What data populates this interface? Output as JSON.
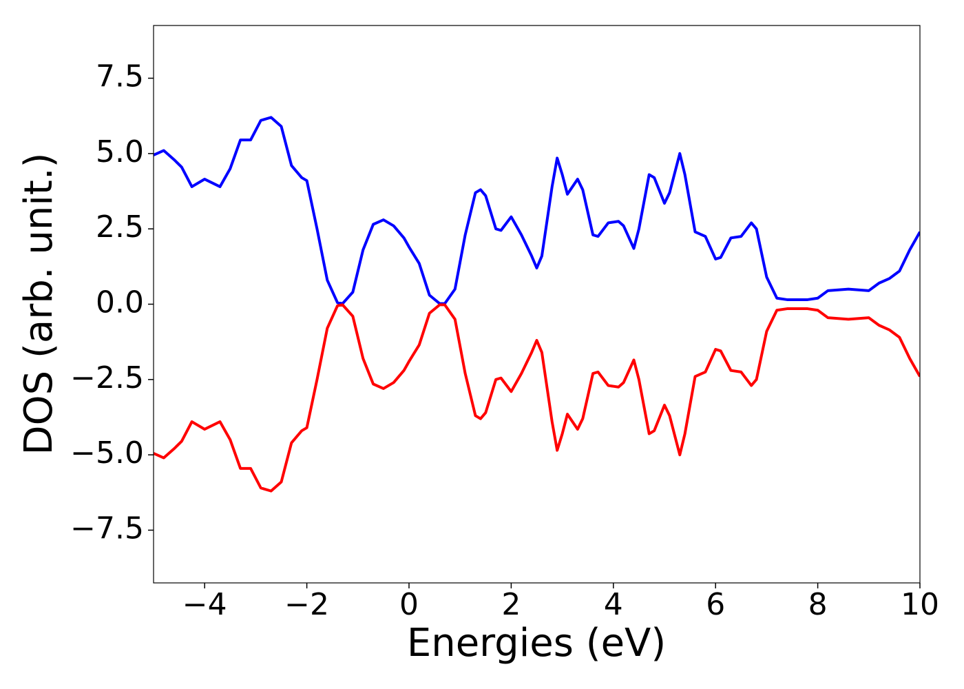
{
  "chart_data": {
    "type": "line",
    "xlabel": "Energies (eV)",
    "ylabel": "DOS (arb. unit.)",
    "x": [
      -5,
      -4.8,
      -4.6,
      -4.45,
      -4.25,
      -4.0,
      -3.7,
      -3.5,
      -3.3,
      -3.1,
      -2.9,
      -2.7,
      -2.5,
      -2.3,
      -2.1,
      -2.0,
      -1.8,
      -1.6,
      -1.4,
      -1.3,
      -1.1,
      -0.9,
      -0.7,
      -0.5,
      -0.3,
      -0.1,
      0,
      0.2,
      0.4,
      0.6,
      0.7,
      0.9,
      1.1,
      1.3,
      1.4,
      1.5,
      1.7,
      1.8,
      2.0,
      2.2,
      2.4,
      2.5,
      2.6,
      2.8,
      2.9,
      3.0,
      3.1,
      3.3,
      3.4,
      3.6,
      3.7,
      3.9,
      4.1,
      4.2,
      4.4,
      4.5,
      4.7,
      4.8,
      5.0,
      5.1,
      5.3,
      5.4,
      5.6,
      5.8,
      6.0,
      6.1,
      6.3,
      6.5,
      6.7,
      6.8,
      7.0,
      7.2,
      7.4,
      7.8,
      8.0,
      8.2,
      8.6,
      9.0,
      9.2,
      9.4,
      9.6,
      9.8,
      10
    ],
    "series": [
      {
        "color": "#0000ff",
        "values": [
          4.95,
          5.1,
          4.8,
          4.55,
          3.9,
          4.15,
          3.9,
          4.5,
          5.45,
          5.45,
          6.1,
          6.2,
          5.9,
          4.6,
          4.2,
          4.1,
          2.5,
          0.8,
          0.05,
          0.02,
          0.4,
          1.8,
          2.65,
          2.8,
          2.6,
          2.2,
          1.9,
          1.35,
          0.3,
          0.02,
          0.02,
          0.5,
          2.3,
          3.7,
          3.8,
          3.6,
          2.5,
          2.45,
          2.9,
          2.3,
          1.6,
          1.2,
          1.6,
          3.9,
          4.85,
          4.3,
          3.65,
          4.15,
          3.8,
          2.3,
          2.25,
          2.7,
          2.75,
          2.6,
          1.85,
          2.5,
          4.3,
          4.2,
          3.35,
          3.7,
          5.0,
          4.3,
          2.4,
          2.25,
          1.5,
          1.55,
          2.2,
          2.25,
          2.7,
          2.5,
          0.9,
          0.2,
          0.15,
          0.15,
          0.2,
          0.45,
          0.5,
          0.45,
          0.7,
          0.85,
          1.1,
          1.8,
          2.4
        ]
      },
      {
        "color": "#ff0000",
        "values": [
          -4.95,
          -5.1,
          -4.8,
          -4.55,
          -3.9,
          -4.15,
          -3.9,
          -4.5,
          -5.45,
          -5.45,
          -6.1,
          -6.2,
          -5.9,
          -4.6,
          -4.2,
          -4.1,
          -2.5,
          -0.8,
          -0.05,
          -0.02,
          -0.4,
          -1.8,
          -2.65,
          -2.8,
          -2.6,
          -2.2,
          -1.9,
          -1.35,
          -0.3,
          -0.02,
          -0.02,
          -0.5,
          -2.3,
          -3.7,
          -3.8,
          -3.6,
          -2.5,
          -2.45,
          -2.9,
          -2.3,
          -1.6,
          -1.2,
          -1.6,
          -3.9,
          -4.85,
          -4.3,
          -3.65,
          -4.15,
          -3.8,
          -2.3,
          -2.25,
          -2.7,
          -2.75,
          -2.6,
          -1.85,
          -2.5,
          -4.3,
          -4.2,
          -3.35,
          -3.7,
          -5.0,
          -4.3,
          -2.4,
          -2.25,
          -1.5,
          -1.55,
          -2.2,
          -2.25,
          -2.7,
          -2.5,
          -0.9,
          -0.2,
          -0.15,
          -0.15,
          -0.2,
          -0.45,
          -0.5,
          -0.45,
          -0.7,
          -0.85,
          -1.1,
          -1.8,
          -2.4
        ]
      }
    ],
    "xlim": [
      -5,
      10
    ],
    "xticks": [
      {
        "value": -4,
        "label": "−4"
      },
      {
        "value": -2,
        "label": "−2"
      },
      0,
      2,
      4,
      6,
      8,
      10
    ],
    "ylim": [
      -9.25,
      9.25
    ],
    "yticks": [
      {
        "value": -7.5,
        "label": "−7.5"
      },
      {
        "value": -5,
        "label": "−5.0"
      },
      {
        "value": -2.5,
        "label": "−2.5"
      },
      {
        "value": 0,
        "label": "0.0"
      },
      {
        "value": 2.5,
        "label": "2.5"
      },
      {
        "value": 5,
        "label": "5.0"
      },
      {
        "value": 7.5,
        "label": "7.5"
      }
    ],
    "grid": false
  }
}
